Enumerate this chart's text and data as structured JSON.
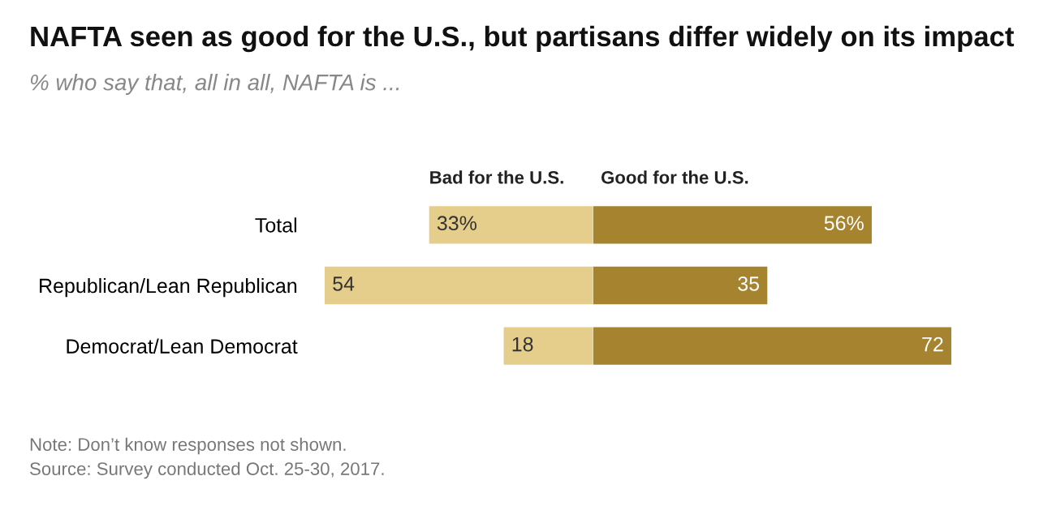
{
  "chart_data": [
    {
      "type": "bar",
      "orientation": "horizontal",
      "title": "NAFTA seen as good for the U.S., but partisans differ widely on its impact",
      "subtitle": "% who say that, all in all, NAFTA is ...",
      "categories": [
        "Total",
        "Republican/Lean Republican",
        "Democrat/Lean Democrat"
      ],
      "xlim": [
        54,
        0
      ],
      "series": [
        {
          "name": "Bad for the U.S.",
          "color": "#e5cd8b",
          "values": [
            33,
            54,
            18
          ],
          "value_labels": [
            "33%",
            "54",
            "18"
          ]
        }
      ],
      "legend": false,
      "grid": false,
      "tick_labels": "y",
      "annotations": [
        "Note: Don’t know responses not shown.",
        "Source: Survey conducted Oct. 25-30, 2017."
      ]
    },
    {
      "type": "bar",
      "orientation": "horizontal",
      "categories": [
        null,
        null,
        null
      ],
      "xlim": [
        0,
        72
      ],
      "series": [
        {
          "name": "Good for the U.S.",
          "color": "#a6832f",
          "values": [
            56,
            35,
            72
          ],
          "value_labels": [
            "56%",
            "35",
            "72"
          ]
        }
      ],
      "legend": false,
      "grid": false,
      "tick_labels": false
    }
  ]
}
